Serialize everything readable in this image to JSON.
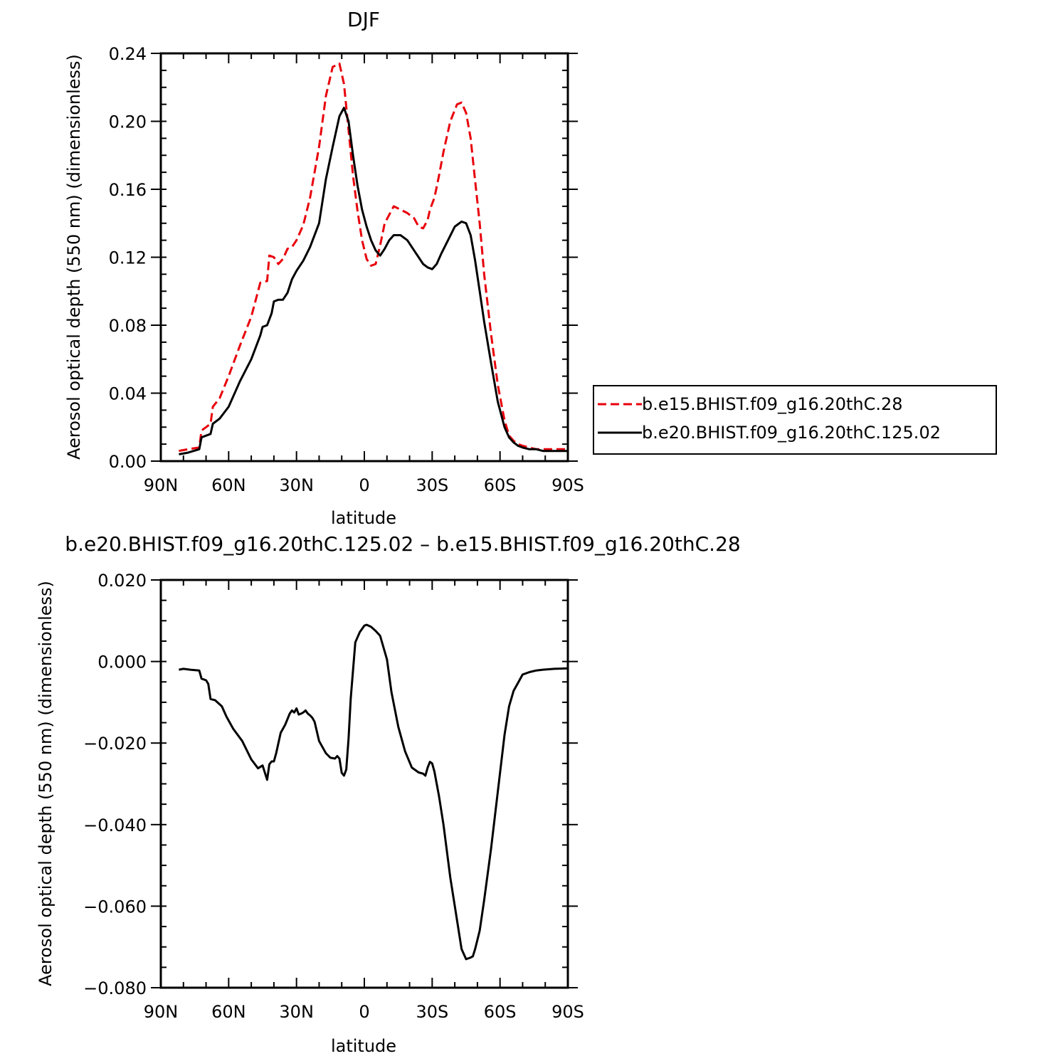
{
  "chart_data": [
    {
      "type": "line",
      "title": "DJF",
      "xlabel": "latitude",
      "ylabel": "Aerosol optical depth (550 nm) (dimensionless)",
      "xlim": [
        90,
        -90
      ],
      "ylim": [
        0.0,
        0.24
      ],
      "x_tick_values": [
        90,
        60,
        30,
        0,
        -30,
        -60,
        -90
      ],
      "x_tick_labels": [
        "90N",
        "60N",
        "30N",
        "0",
        "30S",
        "60S",
        "90S"
      ],
      "y_tick_values": [
        0.0,
        0.04,
        0.08,
        0.12,
        0.16,
        0.2,
        0.24
      ],
      "y_tick_labels": [
        "0.00",
        "0.04",
        "0.08",
        "0.12",
        "0.16",
        "0.20",
        "0.24"
      ],
      "legend_position": "right",
      "series": [
        {
          "name": "b.e15.BHIST.f09_g16.20thC.28",
          "color": "#e8000b",
          "style": "dashed",
          "x": [
            82,
            78,
            73,
            72,
            70,
            68,
            67,
            64,
            60,
            55,
            50,
            46,
            43,
            42,
            40,
            38,
            36,
            34,
            32,
            30,
            27,
            24,
            20,
            17,
            14,
            11,
            9,
            7,
            5,
            3,
            1,
            -1,
            -3,
            -5,
            -7,
            -9,
            -11,
            -13,
            -16,
            -19,
            -22,
            -24,
            -26,
            -28,
            -29,
            -31,
            -33,
            -35,
            -38,
            -41,
            -43,
            -45,
            -47,
            -49,
            -51,
            -53,
            -56,
            -59,
            -62,
            -64,
            -66,
            -68,
            -70,
            -73,
            -76,
            -79,
            -84,
            -90
          ],
          "y": [
            0.006,
            0.007,
            0.008,
            0.018,
            0.02,
            0.022,
            0.032,
            0.037,
            0.05,
            0.068,
            0.085,
            0.105,
            0.106,
            0.121,
            0.12,
            0.116,
            0.119,
            0.125,
            0.126,
            0.13,
            0.139,
            0.155,
            0.185,
            0.215,
            0.232,
            0.234,
            0.222,
            0.195,
            0.168,
            0.147,
            0.13,
            0.119,
            0.115,
            0.116,
            0.127,
            0.14,
            0.145,
            0.15,
            0.148,
            0.146,
            0.143,
            0.138,
            0.137,
            0.142,
            0.148,
            0.155,
            0.168,
            0.182,
            0.2,
            0.21,
            0.211,
            0.205,
            0.19,
            0.165,
            0.14,
            0.11,
            0.075,
            0.045,
            0.024,
            0.015,
            0.012,
            0.01,
            0.009,
            0.008,
            0.007,
            0.007,
            0.007,
            0.007
          ]
        },
        {
          "name": "b.e20.BHIST.f09_g16.20thC.125.02",
          "color": "#000000",
          "style": "solid",
          "x": [
            82,
            78,
            73,
            72,
            70,
            68,
            67,
            64,
            60,
            55,
            50,
            46,
            45,
            43,
            41,
            40,
            38,
            36,
            34,
            32,
            30,
            27,
            24,
            20,
            17,
            14,
            11,
            9,
            7,
            5,
            3,
            1,
            -1,
            -3,
            -5,
            -7,
            -9,
            -11,
            -13,
            -16,
            -19,
            -22,
            -24,
            -26,
            -28,
            -30,
            -32,
            -34,
            -37,
            -40,
            -43,
            -45,
            -47,
            -49,
            -51,
            -53,
            -56,
            -59,
            -62,
            -64,
            -66,
            -68,
            -70,
            -73,
            -76,
            -79,
            -84,
            -90
          ],
          "y": [
            0.004,
            0.005,
            0.007,
            0.014,
            0.015,
            0.016,
            0.022,
            0.025,
            0.032,
            0.047,
            0.06,
            0.074,
            0.079,
            0.08,
            0.087,
            0.094,
            0.095,
            0.095,
            0.099,
            0.107,
            0.112,
            0.118,
            0.126,
            0.14,
            0.166,
            0.185,
            0.203,
            0.208,
            0.2,
            0.18,
            0.162,
            0.148,
            0.138,
            0.13,
            0.124,
            0.121,
            0.125,
            0.13,
            0.133,
            0.133,
            0.13,
            0.124,
            0.12,
            0.116,
            0.114,
            0.113,
            0.116,
            0.122,
            0.13,
            0.138,
            0.141,
            0.14,
            0.133,
            0.118,
            0.1,
            0.082,
            0.058,
            0.035,
            0.02,
            0.014,
            0.011,
            0.009,
            0.008,
            0.007,
            0.007,
            0.006,
            0.006,
            0.006
          ]
        }
      ]
    },
    {
      "type": "line",
      "title": "b.e20.BHIST.f09_g16.20thC.125.02 – b.e15.BHIST.f09_g16.20thC.28",
      "xlabel": "latitude",
      "ylabel": "Aerosol optical depth (550 nm) (dimensionless)",
      "xlim": [
        90,
        -90
      ],
      "ylim": [
        -0.08,
        0.02
      ],
      "x_tick_values": [
        90,
        60,
        30,
        0,
        -30,
        -60,
        -90
      ],
      "x_tick_labels": [
        "90N",
        "60N",
        "30N",
        "0",
        "30S",
        "60S",
        "90S"
      ],
      "y_tick_values": [
        0.02,
        0.0,
        -0.02,
        -0.04,
        -0.06,
        -0.08
      ],
      "y_tick_labels": [
        "0.020",
        "0.000",
        "−0.020",
        "−0.040",
        "−0.060",
        "−0.080"
      ],
      "series": [
        {
          "color": "#000000",
          "style": "solid",
          "x": [
            82,
            80,
            77,
            73,
            72,
            70,
            69,
            68,
            66,
            63,
            61,
            58,
            54,
            50,
            47,
            45,
            43,
            42,
            41,
            40,
            39,
            37,
            35,
            33,
            32,
            31,
            30,
            29,
            28,
            27,
            26,
            25,
            24,
            23,
            22,
            20,
            18,
            17,
            15,
            13,
            12,
            11,
            10,
            9,
            8,
            7,
            6,
            4,
            2,
            0,
            -1,
            -3,
            -5,
            -7,
            -10,
            -12,
            -15,
            -18,
            -21,
            -24,
            -26,
            -27,
            -28,
            -29,
            -30,
            -31,
            -33,
            -35,
            -38,
            -41,
            -43,
            -45,
            -47,
            -48,
            -49,
            -51,
            -53,
            -56,
            -59,
            -62,
            -64,
            -66,
            -68,
            -70,
            -73,
            -76,
            -79,
            -84,
            -90
          ],
          "y": [
            -0.002,
            -0.0018,
            -0.002,
            -0.0022,
            -0.0042,
            -0.0046,
            -0.0055,
            -0.0092,
            -0.0095,
            -0.011,
            -0.0135,
            -0.0165,
            -0.0195,
            -0.024,
            -0.0262,
            -0.0255,
            -0.029,
            -0.0252,
            -0.0245,
            -0.0245,
            -0.0225,
            -0.0175,
            -0.0155,
            -0.0128,
            -0.012,
            -0.0125,
            -0.0115,
            -0.013,
            -0.0128,
            -0.0125,
            -0.012,
            -0.0128,
            -0.0132,
            -0.0138,
            -0.0148,
            -0.0195,
            -0.0215,
            -0.0225,
            -0.0236,
            -0.0238,
            -0.0232,
            -0.0238,
            -0.0273,
            -0.028,
            -0.0265,
            -0.019,
            -0.009,
            0.0047,
            0.0072,
            0.0088,
            0.009,
            0.0085,
            0.0075,
            0.0063,
            0.0005,
            -0.0075,
            -0.016,
            -0.022,
            -0.026,
            -0.0272,
            -0.0275,
            -0.028,
            -0.026,
            -0.0246,
            -0.025,
            -0.027,
            -0.033,
            -0.04,
            -0.053,
            -0.0635,
            -0.0705,
            -0.073,
            -0.0726,
            -0.0723,
            -0.0705,
            -0.066,
            -0.0585,
            -0.046,
            -0.032,
            -0.018,
            -0.011,
            -0.0072,
            -0.0052,
            -0.0032,
            -0.0026,
            -0.0022,
            -0.002,
            -0.0018,
            -0.0017
          ]
        }
      ]
    }
  ]
}
